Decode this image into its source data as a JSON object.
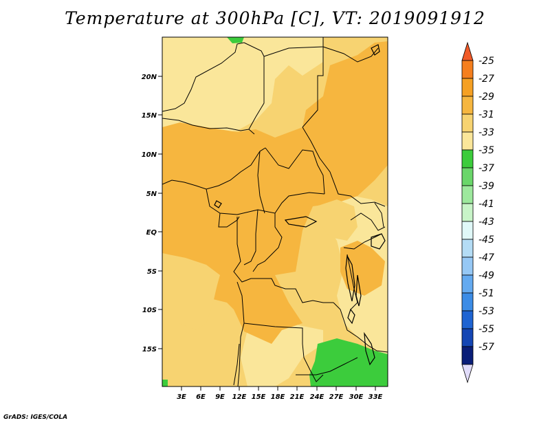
{
  "title": "Temperature at 300hPa [C], VT: 2019091912",
  "credit": "GrADS: IGES/COLA",
  "map": {
    "lat_labels": [
      "20N",
      "15N",
      "10N",
      "5N",
      "EQ",
      "5S",
      "10S",
      "15S"
    ],
    "lon_labels": [
      "3E",
      "6E",
      "9E",
      "12E",
      "15E",
      "18E",
      "21E",
      "24E",
      "27E",
      "30E",
      "33E"
    ]
  },
  "colorbar": {
    "levels": [
      "-25",
      "-27",
      "-29",
      "-31",
      "-33",
      "-35",
      "-37",
      "-39",
      "-41",
      "-43",
      "-45",
      "-47",
      "-49",
      "-51",
      "-53",
      "-55",
      "-57"
    ],
    "colors": [
      "#f05a28",
      "#f57f1e",
      "#f5a023",
      "#f6b63f",
      "#f7d371",
      "#fae69a",
      "#3ccc3c",
      "#6ad66a",
      "#9de89d",
      "#c8f4c8",
      "#e0f8f8",
      "#b4dcf5",
      "#96c8f5",
      "#64aaf0",
      "#3c8ce6",
      "#1e64d2",
      "#1446b4",
      "#0a1e78",
      "#e1dcfa"
    ]
  },
  "palette": {
    "warm_29": "#f6b63f",
    "mid_31": "#f7d371",
    "pale_33": "#fae69a",
    "green_35": "#3ccc3c"
  }
}
